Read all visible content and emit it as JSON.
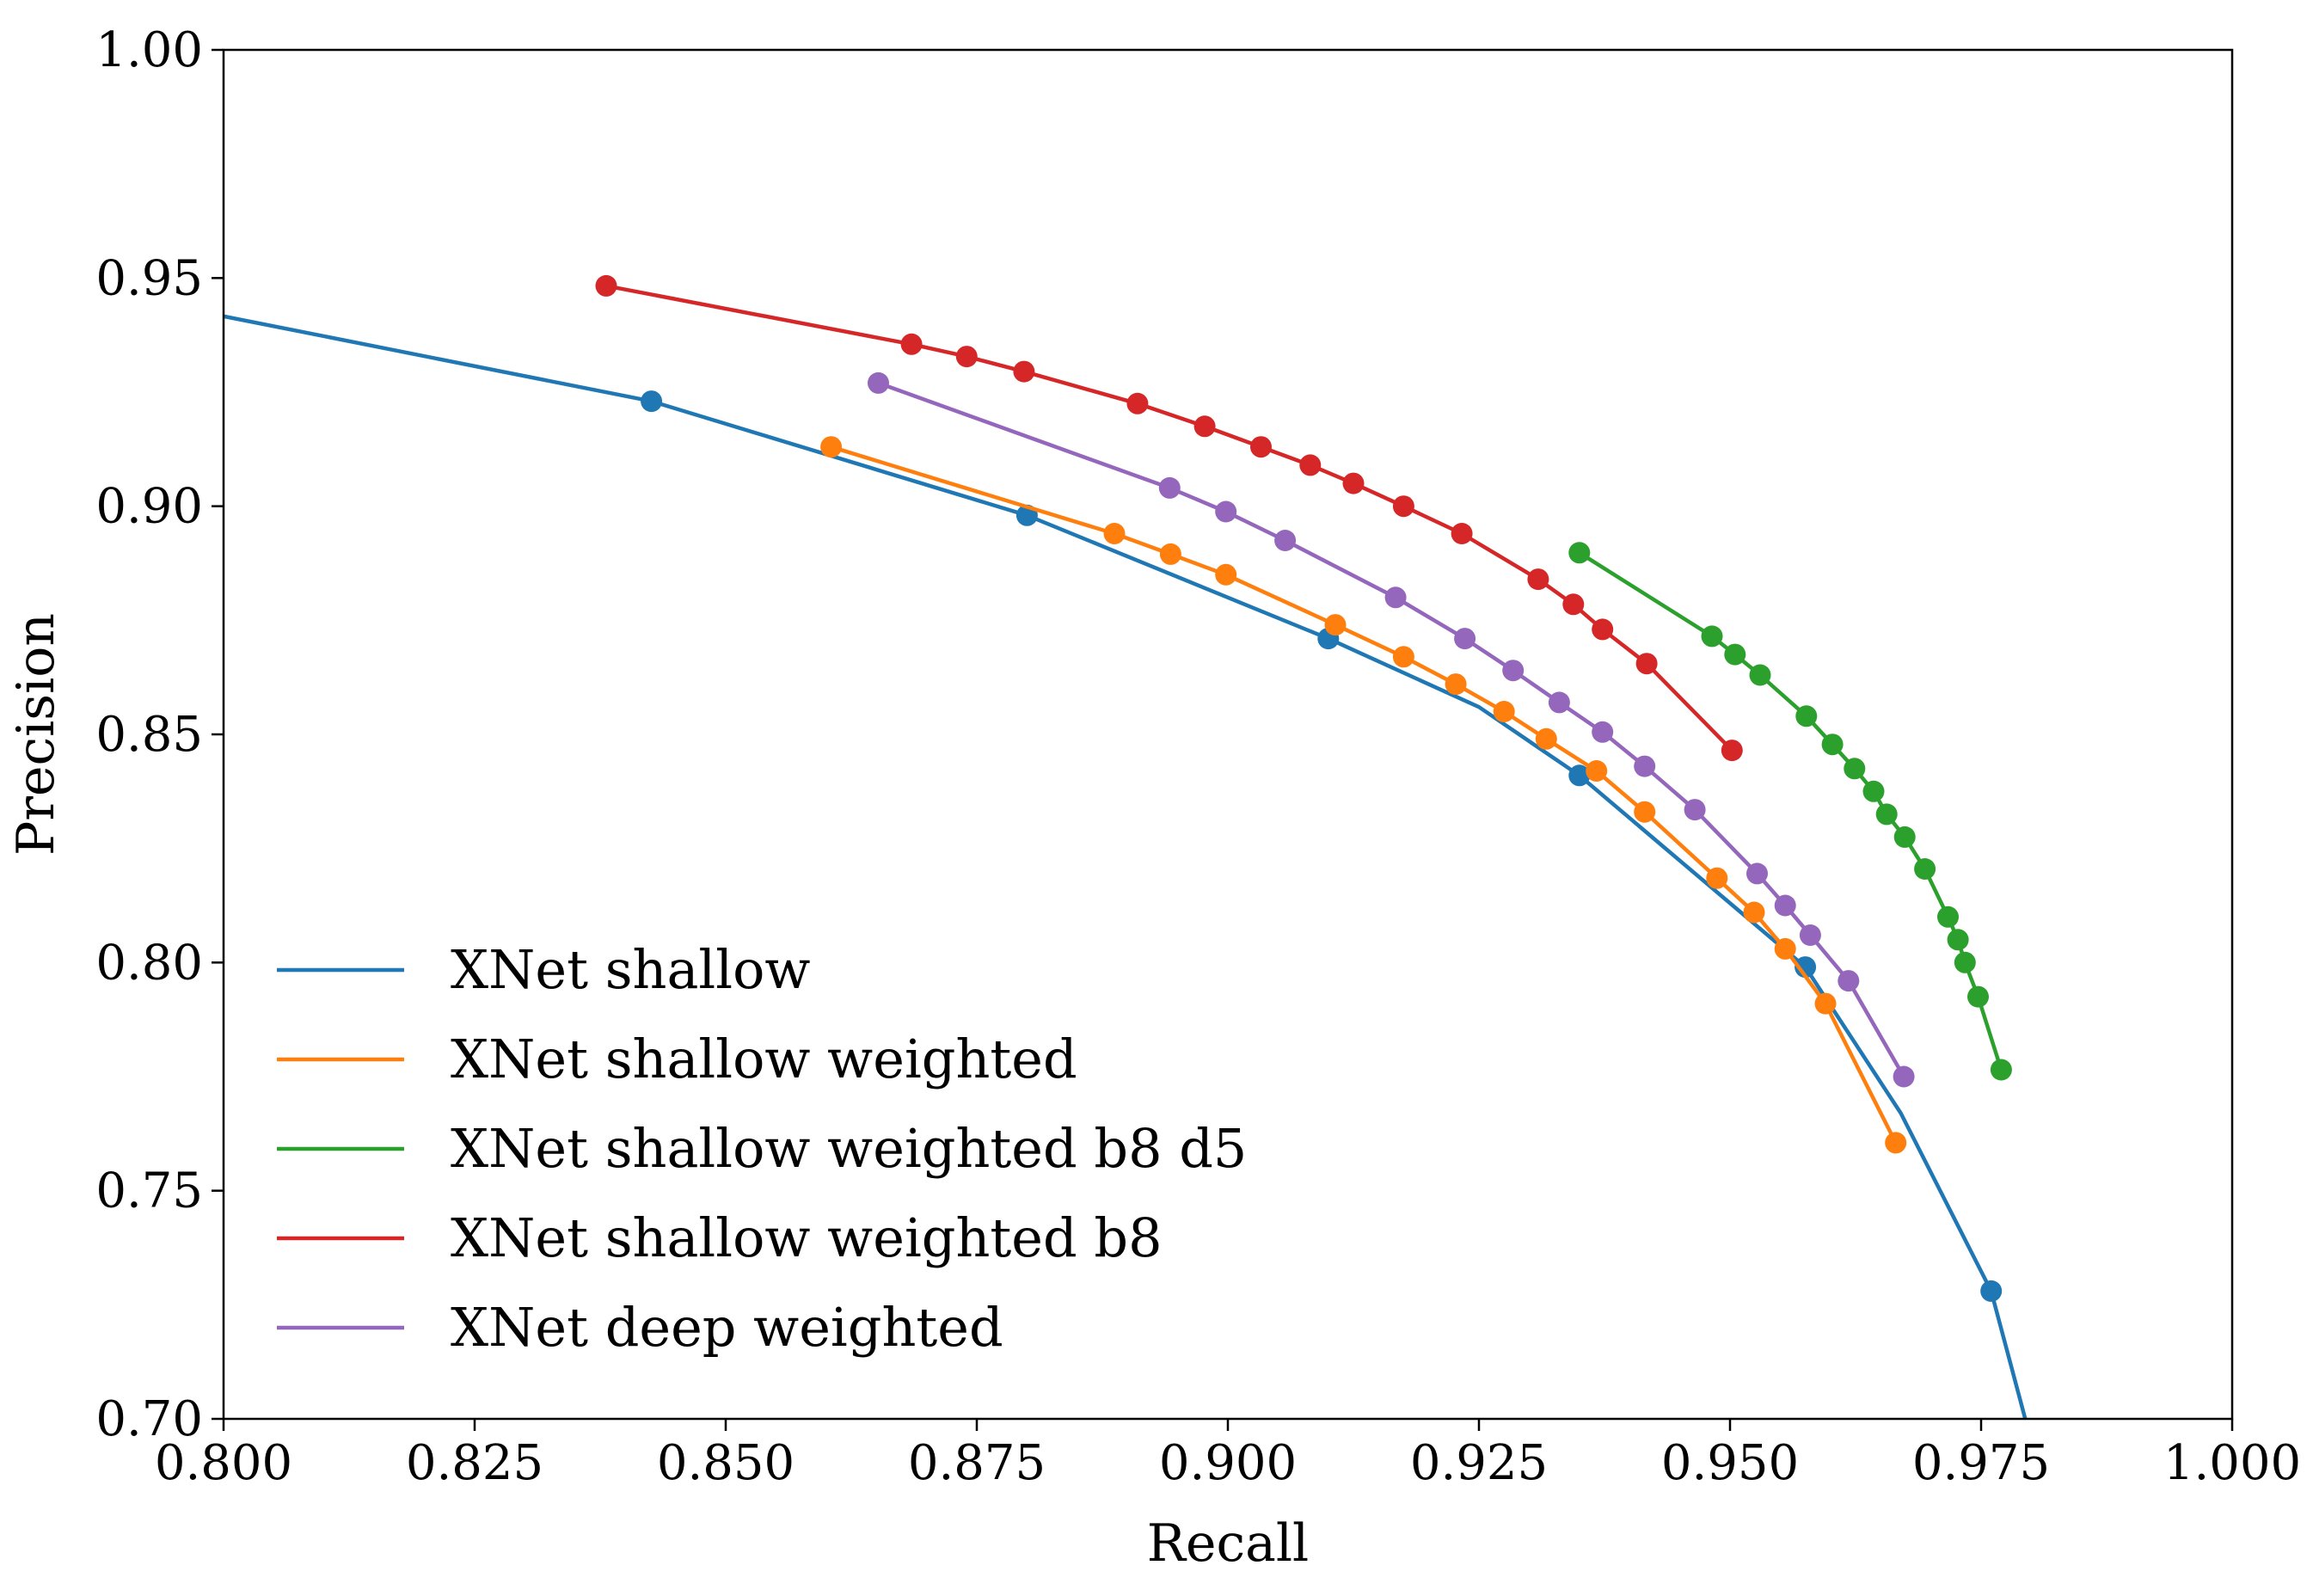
{
  "chart_data": {
    "type": "line",
    "title": "",
    "xlabel": "Recall",
    "ylabel": "Precision",
    "xlim": [
      0.8,
      1.0
    ],
    "ylim": [
      0.7,
      1.0
    ],
    "xticks": [
      "0.800",
      "0.825",
      "0.850",
      "0.875",
      "0.900",
      "0.925",
      "0.950",
      "0.975",
      "1.000"
    ],
    "yticks": [
      "0.70",
      "0.75",
      "0.80",
      "0.85",
      "0.90",
      "0.95",
      "1.00"
    ],
    "grid": false,
    "legend_position": "lower-left",
    "series": [
      {
        "name": "XNet shallow",
        "color": "#1f77b4",
        "line": [
          [
            0.79,
            0.946
          ],
          [
            0.8426,
            0.923
          ],
          [
            0.88,
            0.898
          ],
          [
            0.91,
            0.871
          ],
          [
            0.925,
            0.856
          ],
          [
            0.935,
            0.841
          ],
          [
            0.9575,
            0.799
          ],
          [
            0.967,
            0.767
          ],
          [
            0.976,
            0.728
          ],
          [
            0.98,
            0.695
          ]
        ],
        "markers": [
          [
            0.8426,
            0.923
          ],
          [
            0.88,
            0.898
          ],
          [
            0.91,
            0.871
          ],
          [
            0.935,
            0.841
          ],
          [
            0.9575,
            0.799
          ],
          [
            0.976,
            0.728
          ]
        ]
      },
      {
        "name": "XNet shallow weighted",
        "color": "#ff7f0e",
        "points": [
          [
            0.8605,
            0.913
          ],
          [
            0.8887,
            0.894
          ],
          [
            0.8943,
            0.8895
          ],
          [
            0.8998,
            0.885
          ],
          [
            0.9107,
            0.874
          ],
          [
            0.9175,
            0.867
          ],
          [
            0.9227,
            0.861
          ],
          [
            0.9275,
            0.855
          ],
          [
            0.9317,
            0.849
          ],
          [
            0.9367,
            0.842
          ],
          [
            0.9415,
            0.833
          ],
          [
            0.9487,
            0.8185
          ],
          [
            0.9524,
            0.811
          ],
          [
            0.9555,
            0.803
          ],
          [
            0.9595,
            0.791
          ],
          [
            0.9665,
            0.7605
          ]
        ]
      },
      {
        "name": "XNet shallow weighted b8 d5",
        "color": "#2ca02c",
        "points": [
          [
            0.935,
            0.8898
          ],
          [
            0.9482,
            0.8715
          ],
          [
            0.9505,
            0.8675
          ],
          [
            0.953,
            0.863
          ],
          [
            0.9576,
            0.854
          ],
          [
            0.9602,
            0.8478
          ],
          [
            0.9624,
            0.8425
          ],
          [
            0.9643,
            0.8375
          ],
          [
            0.9656,
            0.8325
          ],
          [
            0.9674,
            0.8275
          ],
          [
            0.9694,
            0.8205
          ],
          [
            0.9717,
            0.81
          ],
          [
            0.9727,
            0.805
          ],
          [
            0.9734,
            0.8
          ],
          [
            0.9747,
            0.7925
          ],
          [
            0.977,
            0.7765
          ]
        ]
      },
      {
        "name": "XNet shallow weighted b8",
        "color": "#d62728",
        "points": [
          [
            0.8381,
            0.9483
          ],
          [
            0.8685,
            0.9355
          ],
          [
            0.874,
            0.9328
          ],
          [
            0.8797,
            0.9295
          ],
          [
            0.891,
            0.9225
          ],
          [
            0.8977,
            0.9175
          ],
          [
            0.9033,
            0.913
          ],
          [
            0.9082,
            0.909
          ],
          [
            0.9125,
            0.905
          ],
          [
            0.9175,
            0.9
          ],
          [
            0.9233,
            0.894
          ],
          [
            0.9309,
            0.884
          ],
          [
            0.9344,
            0.8785
          ],
          [
            0.9373,
            0.873
          ],
          [
            0.9417,
            0.8655
          ],
          [
            0.9502,
            0.8465
          ]
        ]
      },
      {
        "name": "XNet deep weighted",
        "color": "#9467bd",
        "points": [
          [
            0.8652,
            0.927
          ],
          [
            0.8942,
            0.904
          ],
          [
            0.8998,
            0.8988
          ],
          [
            0.9057,
            0.8925
          ],
          [
            0.9167,
            0.88
          ],
          [
            0.9236,
            0.871
          ],
          [
            0.9284,
            0.864
          ],
          [
            0.933,
            0.857
          ],
          [
            0.9373,
            0.8505
          ],
          [
            0.9415,
            0.843
          ],
          [
            0.9465,
            0.8335
          ],
          [
            0.9527,
            0.8195
          ],
          [
            0.9555,
            0.8125
          ],
          [
            0.958,
            0.806
          ],
          [
            0.9618,
            0.796
          ],
          [
            0.9673,
            0.775
          ]
        ]
      }
    ]
  }
}
